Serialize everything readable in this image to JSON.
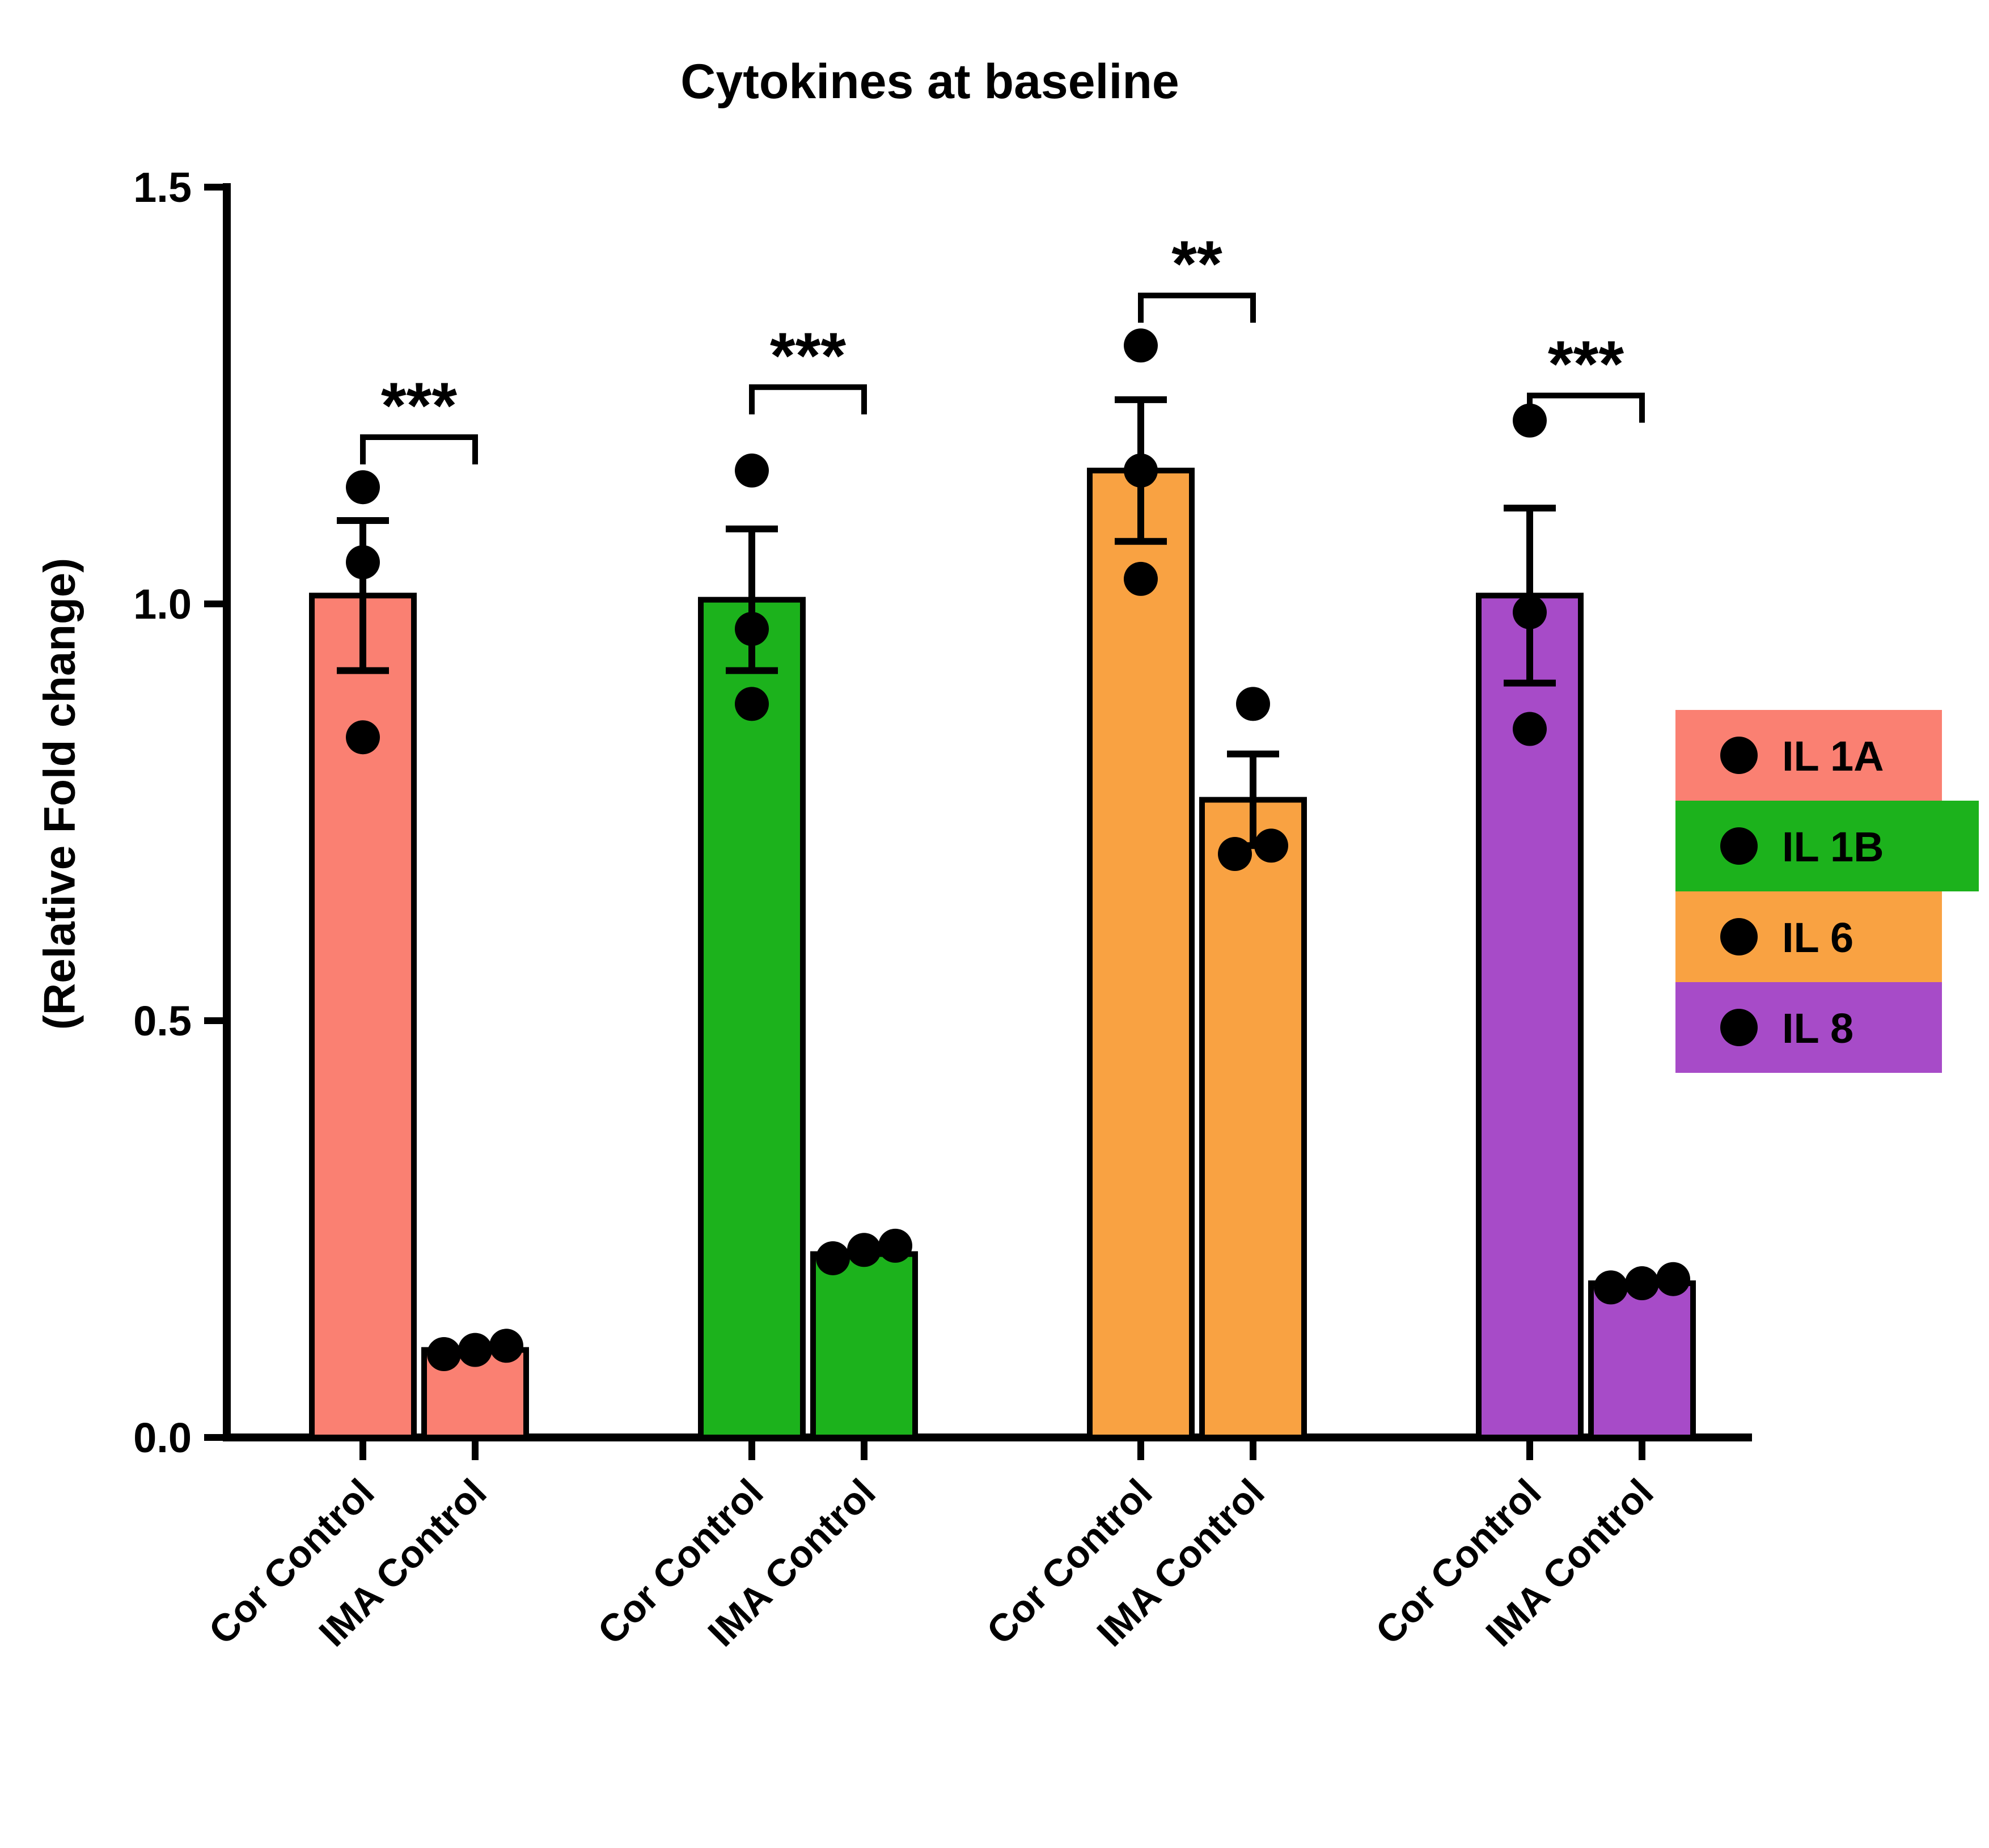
{
  "chart_data": {
    "type": "bar",
    "title": "Cytokines at baseline",
    "xlabel": "",
    "ylabel": "(Relative Fold change)",
    "ylim": [
      0,
      1.5
    ],
    "yticks": [
      0.0,
      0.5,
      1.0,
      1.5
    ],
    "grid": false,
    "legend_position": "right",
    "categories": [
      "Cor Control",
      "IMA Control"
    ],
    "series": [
      {
        "name": "IL 1A",
        "color": "#FA8072",
        "significance": "***",
        "bracket_y": 1.2,
        "bars": [
          {
            "label": "Cor Control",
            "mean": 1.01,
            "sem": 0.09,
            "points": [
              1.14,
              1.05,
              0.84
            ]
          },
          {
            "label": "IMA Control",
            "mean": 0.105,
            "sem": 0,
            "points": [
              0.1,
              0.105,
              0.11
            ]
          }
        ]
      },
      {
        "name": "IL 1B",
        "color": "#1CB21C",
        "significance": "***",
        "bracket_y": 1.26,
        "bars": [
          {
            "label": "Cor Control",
            "mean": 1.005,
            "sem": 0.085,
            "points": [
              1.16,
              0.97,
              0.88
            ]
          },
          {
            "label": "IMA Control",
            "mean": 0.22,
            "sem": 0,
            "points": [
              0.215,
              0.225,
              0.23
            ]
          }
        ]
      },
      {
        "name": "IL 6",
        "color": "#F9A242",
        "significance": "**",
        "bracket_y": 1.37,
        "bars": [
          {
            "label": "Cor Control",
            "mean": 1.16,
            "sem": 0.085,
            "points": [
              1.31,
              1.16,
              1.03
            ]
          },
          {
            "label": "IMA Control",
            "mean": 0.765,
            "sem": 0.055,
            "points": [
              0.88,
              0.71,
              0.7
            ]
          }
        ]
      },
      {
        "name": "IL 8",
        "color": "#A74BC8",
        "significance": "***",
        "bracket_y": 1.25,
        "bars": [
          {
            "label": "Cor Control",
            "mean": 1.01,
            "sem": 0.105,
            "points": [
              1.22,
              0.99,
              0.85
            ]
          },
          {
            "label": "IMA Control",
            "mean": 0.185,
            "sem": 0,
            "points": [
              0.18,
              0.185,
              0.19
            ]
          }
        ]
      }
    ]
  }
}
